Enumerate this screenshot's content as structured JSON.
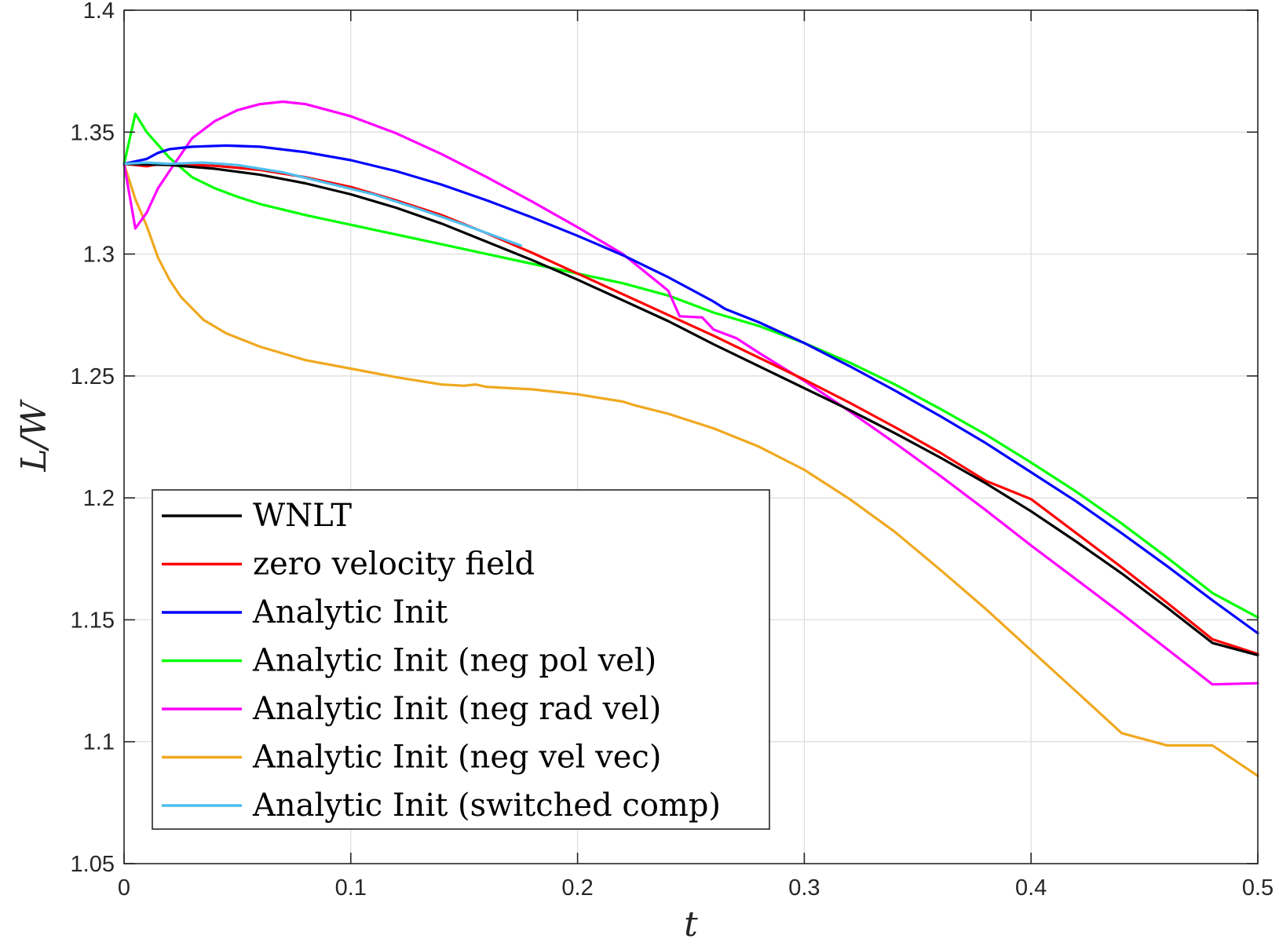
{
  "chart_data": {
    "type": "line",
    "title": "",
    "xlabel": "t",
    "ylabel": "L/W",
    "xlim": [
      0,
      0.5
    ],
    "ylim": [
      1.05,
      1.4
    ],
    "xticks": [
      0,
      0.1,
      0.2,
      0.3,
      0.4,
      0.5
    ],
    "xtick_labels": [
      "0",
      "0.1",
      "0.2",
      "0.3",
      "0.4",
      "0.5"
    ],
    "yticks": [
      1.05,
      1.1,
      1.15,
      1.2,
      1.25,
      1.3,
      1.35,
      1.4
    ],
    "ytick_labels": [
      "1.05",
      "1.1",
      "1.15",
      "1.2",
      "1.25",
      "1.3",
      "1.35",
      "1.4"
    ],
    "grid": true,
    "legend_position": "lower-left",
    "series": [
      {
        "name": "WNLT",
        "color": "#000000",
        "points": [
          [
            0,
            1.337
          ],
          [
            0.02,
            1.3365
          ],
          [
            0.04,
            1.335
          ],
          [
            0.06,
            1.3325
          ],
          [
            0.08,
            1.329
          ],
          [
            0.1,
            1.3245
          ],
          [
            0.12,
            1.319
          ],
          [
            0.14,
            1.3125
          ],
          [
            0.16,
            1.305
          ],
          [
            0.18,
            1.2975
          ],
          [
            0.2,
            1.2895
          ],
          [
            0.22,
            1.281
          ],
          [
            0.24,
            1.2725
          ],
          [
            0.26,
            1.263
          ],
          [
            0.28,
            1.254
          ],
          [
            0.3,
            1.245
          ],
          [
            0.32,
            1.236
          ],
          [
            0.34,
            1.2265
          ],
          [
            0.36,
            1.2165
          ],
          [
            0.38,
            1.206
          ],
          [
            0.4,
            1.1945
          ],
          [
            0.42,
            1.182
          ],
          [
            0.44,
            1.169
          ],
          [
            0.46,
            1.155
          ],
          [
            0.48,
            1.1405
          ],
          [
            0.5,
            1.1355
          ]
        ]
      },
      {
        "name": "zero velocity field",
        "color": "#ff0000",
        "points": [
          [
            0,
            1.337
          ],
          [
            0.005,
            1.3365
          ],
          [
            0.01,
            1.336
          ],
          [
            0.015,
            1.3368
          ],
          [
            0.02,
            1.3368
          ],
          [
            0.04,
            1.3362
          ],
          [
            0.06,
            1.3345
          ],
          [
            0.08,
            1.3315
          ],
          [
            0.1,
            1.3275
          ],
          [
            0.12,
            1.322
          ],
          [
            0.14,
            1.316
          ],
          [
            0.16,
            1.3085
          ],
          [
            0.18,
            1.3005
          ],
          [
            0.2,
            1.292
          ],
          [
            0.22,
            1.2835
          ],
          [
            0.24,
            1.275
          ],
          [
            0.26,
            1.2665
          ],
          [
            0.28,
            1.2575
          ],
          [
            0.3,
            1.2485
          ],
          [
            0.32,
            1.239
          ],
          [
            0.34,
            1.229
          ],
          [
            0.36,
            1.2185
          ],
          [
            0.38,
            1.207
          ],
          [
            0.4,
            1.1995
          ],
          [
            0.42,
            1.1855
          ],
          [
            0.44,
            1.1715
          ],
          [
            0.46,
            1.157
          ],
          [
            0.48,
            1.142
          ],
          [
            0.5,
            1.136
          ]
        ]
      },
      {
        "name": "Analytic Init",
        "color": "#0000ff",
        "points": [
          [
            0,
            1.337
          ],
          [
            0.005,
            1.338
          ],
          [
            0.01,
            1.339
          ],
          [
            0.015,
            1.3415
          ],
          [
            0.02,
            1.343
          ],
          [
            0.03,
            1.344
          ],
          [
            0.045,
            1.3445
          ],
          [
            0.06,
            1.344
          ],
          [
            0.08,
            1.3418
          ],
          [
            0.1,
            1.3385
          ],
          [
            0.12,
            1.334
          ],
          [
            0.14,
            1.3285
          ],
          [
            0.16,
            1.322
          ],
          [
            0.18,
            1.315
          ],
          [
            0.2,
            1.3075
          ],
          [
            0.22,
            1.2995
          ],
          [
            0.24,
            1.2905
          ],
          [
            0.26,
            1.2805
          ],
          [
            0.265,
            1.2775
          ],
          [
            0.28,
            1.272
          ],
          [
            0.3,
            1.2635
          ],
          [
            0.32,
            1.254
          ],
          [
            0.34,
            1.244
          ],
          [
            0.36,
            1.2335
          ],
          [
            0.38,
            1.2225
          ],
          [
            0.4,
            1.2105
          ],
          [
            0.42,
            1.1985
          ],
          [
            0.44,
            1.1855
          ],
          [
            0.46,
            1.172
          ],
          [
            0.48,
            1.158
          ],
          [
            0.5,
            1.1445
          ]
        ]
      },
      {
        "name": "Analytic Init (neg pol vel)",
        "color": "#00ff00",
        "points": [
          [
            0,
            1.337
          ],
          [
            0.005,
            1.3575
          ],
          [
            0.01,
            1.35
          ],
          [
            0.02,
            1.3395
          ],
          [
            0.03,
            1.3315
          ],
          [
            0.04,
            1.327
          ],
          [
            0.05,
            1.3235
          ],
          [
            0.06,
            1.3205
          ],
          [
            0.08,
            1.316
          ],
          [
            0.1,
            1.312
          ],
          [
            0.12,
            1.308
          ],
          [
            0.14,
            1.304
          ],
          [
            0.16,
            1.3
          ],
          [
            0.18,
            1.296
          ],
          [
            0.2,
            1.292
          ],
          [
            0.22,
            1.288
          ],
          [
            0.24,
            1.283
          ],
          [
            0.25,
            1.2795
          ],
          [
            0.26,
            1.276
          ],
          [
            0.28,
            1.2705
          ],
          [
            0.3,
            1.2635
          ],
          [
            0.32,
            1.2555
          ],
          [
            0.34,
            1.2465
          ],
          [
            0.36,
            1.2365
          ],
          [
            0.38,
            1.226
          ],
          [
            0.4,
            1.2145
          ],
          [
            0.42,
            1.2025
          ],
          [
            0.44,
            1.1895
          ],
          [
            0.46,
            1.1755
          ],
          [
            0.48,
            1.161
          ],
          [
            0.5,
            1.151
          ]
        ]
      },
      {
        "name": "Analytic Init (neg rad vel)",
        "color": "#ff00ff",
        "points": [
          [
            0,
            1.337
          ],
          [
            0.003,
            1.321
          ],
          [
            0.005,
            1.3105
          ],
          [
            0.01,
            1.317
          ],
          [
            0.015,
            1.327
          ],
          [
            0.02,
            1.334
          ],
          [
            0.03,
            1.3475
          ],
          [
            0.04,
            1.3545
          ],
          [
            0.05,
            1.359
          ],
          [
            0.06,
            1.3615
          ],
          [
            0.07,
            1.3625
          ],
          [
            0.08,
            1.3615
          ],
          [
            0.1,
            1.3565
          ],
          [
            0.12,
            1.3495
          ],
          [
            0.14,
            1.341
          ],
          [
            0.16,
            1.3315
          ],
          [
            0.18,
            1.3215
          ],
          [
            0.2,
            1.311
          ],
          [
            0.22,
            1.3
          ],
          [
            0.24,
            1.285
          ],
          [
            0.245,
            1.2745
          ],
          [
            0.255,
            1.274
          ],
          [
            0.26,
            1.269
          ],
          [
            0.27,
            1.2655
          ],
          [
            0.28,
            1.2595
          ],
          [
            0.3,
            1.248
          ],
          [
            0.32,
            1.2355
          ],
          [
            0.34,
            1.2225
          ],
          [
            0.36,
            1.209
          ],
          [
            0.38,
            1.195
          ],
          [
            0.4,
            1.1805
          ],
          [
            0.42,
            1.1665
          ],
          [
            0.44,
            1.1525
          ],
          [
            0.46,
            1.138
          ],
          [
            0.48,
            1.1235
          ],
          [
            0.5,
            1.124
          ]
        ]
      },
      {
        "name": "Analytic Init (neg vel vec)",
        "color": "#f0a820",
        "points": [
          [
            0,
            1.337
          ],
          [
            0.005,
            1.3225
          ],
          [
            0.01,
            1.3115
          ],
          [
            0.015,
            1.2985
          ],
          [
            0.02,
            1.2895
          ],
          [
            0.025,
            1.2825
          ],
          [
            0.035,
            1.273
          ],
          [
            0.045,
            1.2675
          ],
          [
            0.06,
            1.262
          ],
          [
            0.08,
            1.2565
          ],
          [
            0.1,
            1.253
          ],
          [
            0.12,
            1.2495
          ],
          [
            0.14,
            1.2465
          ],
          [
            0.15,
            1.246
          ],
          [
            0.155,
            1.2465
          ],
          [
            0.16,
            1.2455
          ],
          [
            0.18,
            1.2445
          ],
          [
            0.2,
            1.2425
          ],
          [
            0.22,
            1.2395
          ],
          [
            0.225,
            1.238
          ],
          [
            0.24,
            1.2345
          ],
          [
            0.26,
            1.2285
          ],
          [
            0.28,
            1.221
          ],
          [
            0.3,
            1.2115
          ],
          [
            0.32,
            1.1995
          ],
          [
            0.34,
            1.186
          ],
          [
            0.36,
            1.1705
          ],
          [
            0.38,
            1.1545
          ],
          [
            0.4,
            1.1375
          ],
          [
            0.42,
            1.1205
          ],
          [
            0.44,
            1.1035
          ],
          [
            0.46,
            1.0985
          ],
          [
            0.48,
            1.0985
          ],
          [
            0.5,
            1.086
          ]
        ]
      },
      {
        "name": "Analytic Init (switched comp)",
        "color": "#4dbeee",
        "points": [
          [
            0,
            1.337
          ],
          [
            0.01,
            1.3375
          ],
          [
            0.02,
            1.337
          ],
          [
            0.035,
            1.3375
          ],
          [
            0.05,
            1.3365
          ],
          [
            0.07,
            1.3335
          ],
          [
            0.09,
            1.329
          ],
          [
            0.11,
            1.3245
          ],
          [
            0.13,
            1.3185
          ],
          [
            0.15,
            1.312
          ],
          [
            0.175,
            1.3035
          ]
        ]
      }
    ]
  }
}
